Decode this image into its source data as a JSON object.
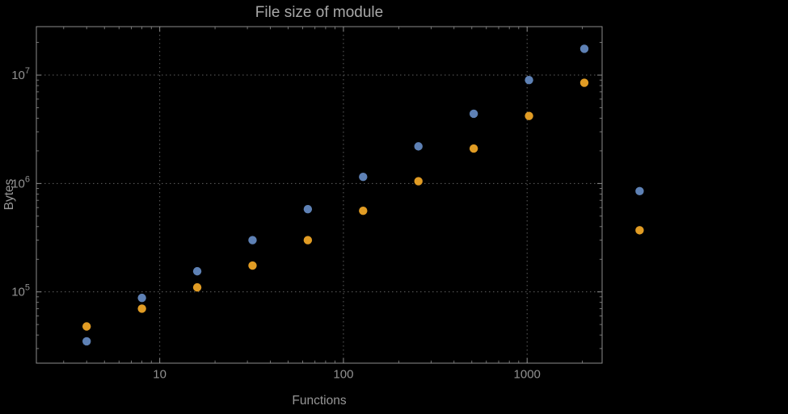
{
  "page": {
    "background": "#000000"
  },
  "chart_data": {
    "type": "scatter",
    "title": "File size of module",
    "xlabel": "Functions",
    "ylabel": "Bytes",
    "xscale": "log",
    "yscale": "log",
    "xlim": [
      2.13,
      2560
    ],
    "ylim": [
      22000,
      28000000
    ],
    "x_ticks": [
      10,
      100,
      1000
    ],
    "y_ticks": [
      100000,
      1000000,
      10000000
    ],
    "grid": true,
    "grid_style": "dotted",
    "legend": "none",
    "clip_points": false,
    "series": [
      {
        "name": "blue",
        "color": "#5E81B5",
        "points": [
          [
            4,
            35000
          ],
          [
            8,
            88000
          ],
          [
            16,
            155000
          ],
          [
            32,
            300000
          ],
          [
            64,
            580000
          ],
          [
            128,
            1150000
          ],
          [
            256,
            2200000
          ],
          [
            512,
            4400000
          ],
          [
            1024,
            9000000
          ],
          [
            2048,
            17500000
          ],
          [
            4096,
            850000
          ]
        ]
      },
      {
        "name": "orange",
        "color": "#E19C24",
        "points": [
          [
            4,
            48000
          ],
          [
            8,
            70000
          ],
          [
            16,
            110000
          ],
          [
            32,
            175000
          ],
          [
            64,
            300000
          ],
          [
            128,
            560000
          ],
          [
            256,
            1050000
          ],
          [
            512,
            2100000
          ],
          [
            1024,
            4200000
          ],
          [
            2048,
            8500000
          ],
          [
            4096,
            370000
          ]
        ]
      }
    ],
    "colors": {
      "frame": "#8c8c8c",
      "grid": "#606060",
      "tick_label": "#919191",
      "axis_label": "#979797",
      "title": "#a8a8a8"
    }
  }
}
